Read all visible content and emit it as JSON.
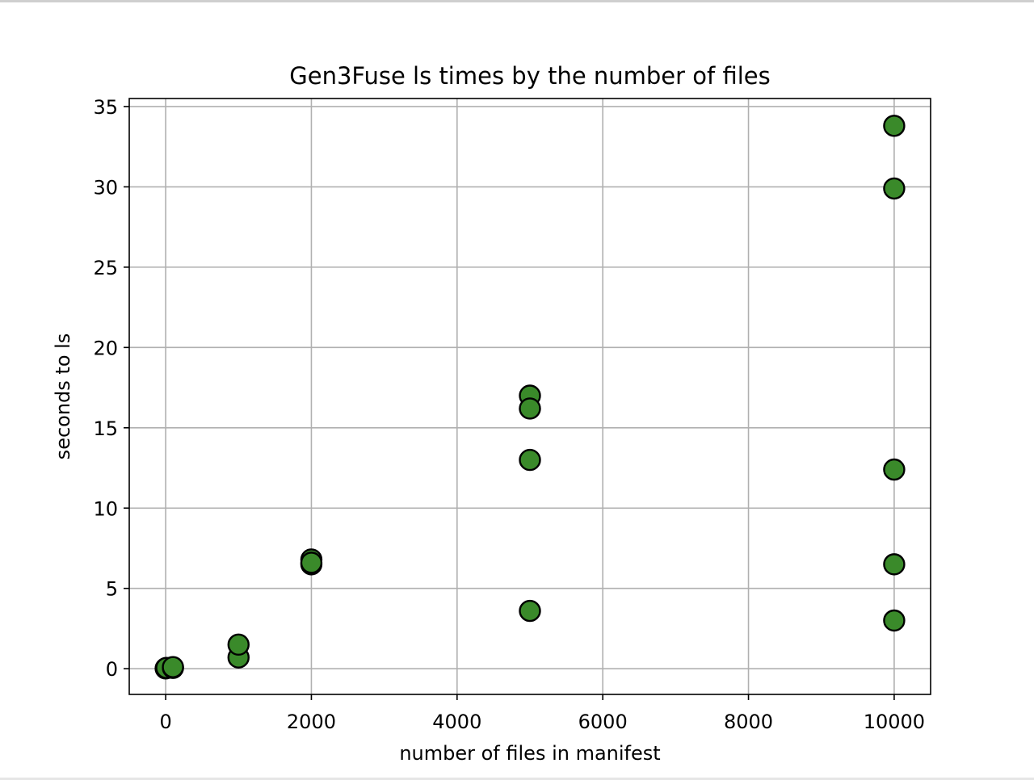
{
  "chart_data": {
    "type": "scatter",
    "title": "Gen3Fuse ls times by the number of files",
    "xlabel": "number of files in manifest",
    "ylabel": "seconds to ls",
    "xlim": [
      -500,
      10500
    ],
    "ylim": [
      -1.6,
      35.5
    ],
    "x_ticks": [
      0,
      2000,
      4000,
      6000,
      8000,
      10000
    ],
    "y_ticks": [
      0,
      5,
      10,
      15,
      20,
      25,
      30,
      35
    ],
    "grid": true,
    "legend": "none",
    "marker_color": "#3a8a2a",
    "marker_edge_color": "#000000",
    "points": [
      {
        "x": 0,
        "y": 0.02
      },
      {
        "x": 10,
        "y": 0.05
      },
      {
        "x": 100,
        "y": 0.05
      },
      {
        "x": 100,
        "y": 0.1
      },
      {
        "x": 1000,
        "y": 0.7
      },
      {
        "x": 1000,
        "y": 1.5
      },
      {
        "x": 2000,
        "y": 6.5
      },
      {
        "x": 2000,
        "y": 6.8
      },
      {
        "x": 2000,
        "y": 6.6
      },
      {
        "x": 5000,
        "y": 17.0
      },
      {
        "x": 5000,
        "y": 16.2
      },
      {
        "x": 5000,
        "y": 13.0
      },
      {
        "x": 5000,
        "y": 3.6
      },
      {
        "x": 10000,
        "y": 33.8
      },
      {
        "x": 10000,
        "y": 29.9
      },
      {
        "x": 10000,
        "y": 12.4
      },
      {
        "x": 10000,
        "y": 6.5
      },
      {
        "x": 10000,
        "y": 3.0
      }
    ]
  }
}
